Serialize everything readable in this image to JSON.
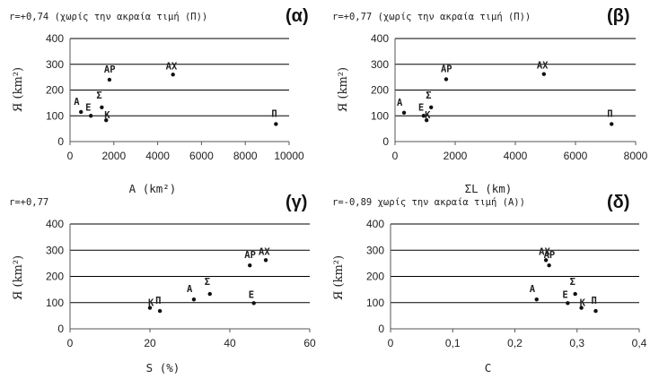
{
  "chart_data": [
    {
      "type": "scatter",
      "panel_label": "(α)",
      "note": "r=+0,74 (χωρίς την ακραία τιμή (Π))",
      "xlabel": "A (km²)",
      "ylabel": "Я (km²)",
      "xlim": [
        0,
        10000
      ],
      "ylim": [
        0,
        400
      ],
      "xticks": [
        "0",
        "2000",
        "4000",
        "6000",
        "8000",
        "10000"
      ],
      "yticks": [
        "0",
        "100",
        "200",
        "300",
        "400"
      ],
      "grid": "horizontal",
      "points": [
        {
          "label": "A",
          "x": 500,
          "y": 115
        },
        {
          "label": "E",
          "x": 950,
          "y": 100
        },
        {
          "label": "Σ",
          "x": 1450,
          "y": 133
        },
        {
          "label": "K",
          "x": 1650,
          "y": 83
        },
        {
          "label": "AP",
          "x": 1800,
          "y": 240
        },
        {
          "label": "AX",
          "x": 4700,
          "y": 260
        },
        {
          "label": "Π",
          "x": 9400,
          "y": 68
        }
      ]
    },
    {
      "type": "scatter",
      "panel_label": "(β)",
      "note": "r=+0,77 (χωρίς την ακραία τιμή (Π))",
      "xlabel": "ΣL (km)",
      "ylabel": "Я (km²)",
      "xlim": [
        0,
        8000
      ],
      "ylim": [
        0,
        400
      ],
      "xticks": [
        "0",
        "2000",
        "4000",
        "6000",
        "8000"
      ],
      "yticks": [
        "0",
        "100",
        "200",
        "300",
        "400"
      ],
      "grid": "horizontal",
      "points": [
        {
          "label": "A",
          "x": 300,
          "y": 112
        },
        {
          "label": "E",
          "x": 950,
          "y": 100
        },
        {
          "label": "Σ",
          "x": 1200,
          "y": 133
        },
        {
          "label": "K",
          "x": 1050,
          "y": 83
        },
        {
          "label": "AP",
          "x": 1700,
          "y": 242
        },
        {
          "label": "AX",
          "x": 4950,
          "y": 262
        },
        {
          "label": "Π",
          "x": 7200,
          "y": 68
        }
      ]
    },
    {
      "type": "scatter",
      "panel_label": "(γ)",
      "note": "r=+0,77",
      "xlabel": "S (%)",
      "ylabel": "Я (km²)",
      "xlim": [
        0,
        60
      ],
      "ylim": [
        0,
        400
      ],
      "xticks": [
        "0",
        "20",
        "40",
        "60"
      ],
      "yticks": [
        "0",
        "100",
        "200",
        "300",
        "400"
      ],
      "grid": "horizontal",
      "points": [
        {
          "label": "K",
          "x": 20,
          "y": 80
        },
        {
          "label": "Π",
          "x": 22.5,
          "y": 68
        },
        {
          "label": "A",
          "x": 31,
          "y": 112
        },
        {
          "label": "Σ",
          "x": 35,
          "y": 133
        },
        {
          "label": "AP",
          "x": 45,
          "y": 242
        },
        {
          "label": "E",
          "x": 46,
          "y": 98
        },
        {
          "label": "AX",
          "x": 49,
          "y": 262
        }
      ]
    },
    {
      "type": "scatter",
      "panel_label": "(δ)",
      "note": "r=-0,89 χωρίς την ακραία τιμή (A))",
      "xlabel": "C",
      "ylabel": "Я (km²)",
      "xlim": [
        0,
        0.4
      ],
      "ylim": [
        0,
        400
      ],
      "xticks": [
        "0",
        "0,1",
        "0,2",
        "0,3",
        "0,4"
      ],
      "yticks": [
        "0",
        "100",
        "200",
        "300",
        "400"
      ],
      "grid": "horizontal",
      "points": [
        {
          "label": "A",
          "x": 0.235,
          "y": 112
        },
        {
          "label": "AX",
          "x": 0.25,
          "y": 262
        },
        {
          "label": "AP",
          "x": 0.255,
          "y": 242
        },
        {
          "label": "E",
          "x": 0.285,
          "y": 98
        },
        {
          "label": "Σ",
          "x": 0.297,
          "y": 133
        },
        {
          "label": "K",
          "x": 0.307,
          "y": 80
        },
        {
          "label": "Π",
          "x": 0.33,
          "y": 68
        }
      ]
    }
  ]
}
